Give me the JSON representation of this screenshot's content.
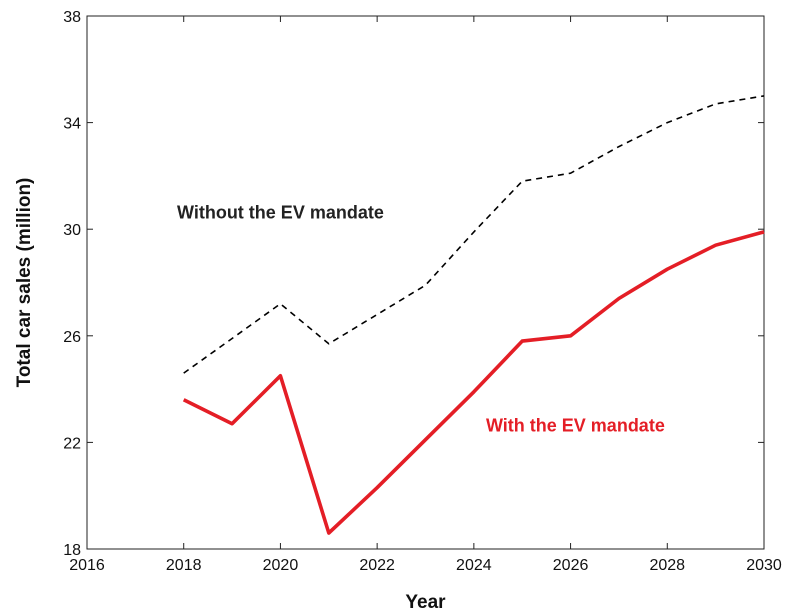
{
  "chart_data": {
    "type": "line",
    "title": "",
    "xlabel": "Year",
    "ylabel": "Total car sales (million)",
    "xlim": [
      2016,
      2030
    ],
    "ylim": [
      18,
      38
    ],
    "xticks": [
      2016,
      2018,
      2020,
      2022,
      2024,
      2026,
      2028,
      2030
    ],
    "yticks": [
      18,
      22,
      26,
      30,
      34,
      38
    ],
    "grid": false,
    "series": [
      {
        "name": "Without the EV mandate",
        "color": "#000000",
        "line_style": "dashed",
        "x": [
          2018,
          2019,
          2020,
          2021,
          2022,
          2023,
          2024,
          2025,
          2026,
          2027,
          2028,
          2029,
          2030
        ],
        "values": [
          24.6,
          25.9,
          27.2,
          25.7,
          26.8,
          27.9,
          29.9,
          31.8,
          32.1,
          33.1,
          34.0,
          34.7,
          35.0
        ]
      },
      {
        "name": "With the EV mandate",
        "color": "#e41e26",
        "line_style": "solid",
        "x": [
          2018,
          2019,
          2020,
          2021,
          2022,
          2023,
          2024,
          2025,
          2026,
          2027,
          2028,
          2029,
          2030
        ],
        "values": [
          23.6,
          22.7,
          24.5,
          18.6,
          20.3,
          22.1,
          23.9,
          25.8,
          26.0,
          27.4,
          28.5,
          29.4,
          29.9
        ]
      }
    ],
    "annotations": [
      {
        "text": "Without the EV mandate",
        "series_index": 0,
        "anchor_x": 2020.0,
        "anchor_y": 30.4,
        "color": "#222222"
      },
      {
        "text": "With the EV mandate",
        "series_index": 1,
        "anchor_x": 2026.1,
        "anchor_y": 22.4,
        "color": "#e41e26"
      }
    ]
  }
}
